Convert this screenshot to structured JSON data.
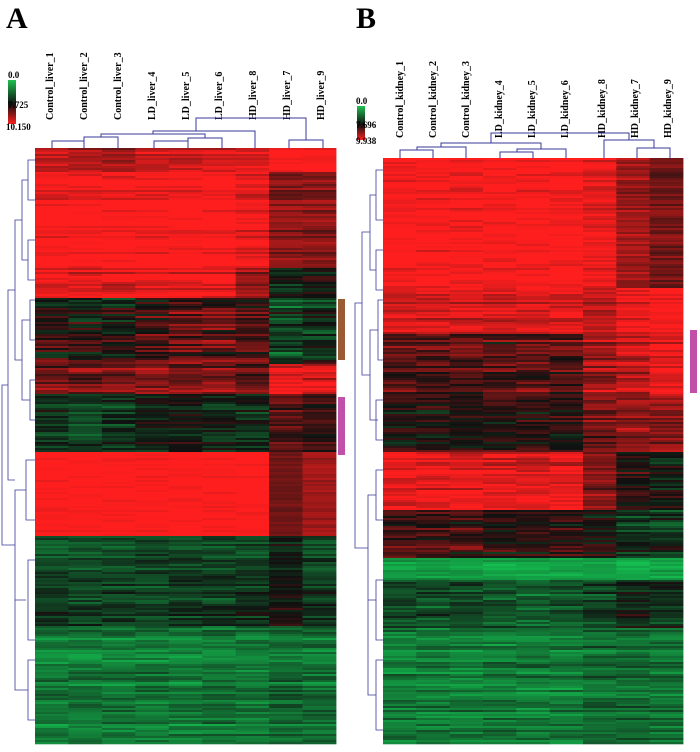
{
  "panels": [
    {
      "letter": "A",
      "legend": {
        "min": "0.0",
        "mid": "7.725",
        "max": "10.150"
      },
      "columns": [
        "Control_liver_1",
        "Control_liver_2",
        "Control_liver_3",
        "LD_liver_4",
        "LD_liver_5",
        "LD_liver_6",
        "HD_liver_8",
        "HD_liver_7",
        "HD_liver_9"
      ]
    },
    {
      "letter": "B",
      "legend": {
        "min": "0.0",
        "mid": "7.696",
        "max": "9.938"
      },
      "columns": [
        "Control_kidney_1",
        "Control_kidney_2",
        "Control_kidney_3",
        "LD_kidney_4",
        "LD_kidney_5",
        "LD_kidney_6",
        "HD_kidney_8",
        "HD_kidney_7",
        "HD_kidney_9"
      ]
    }
  ],
  "colors": {
    "high": "#ff2020",
    "mid": "#101010",
    "low": "#20b050",
    "dendrogram": "#3a3a9a",
    "marker_brown": "#9a5a34",
    "marker_magenta": "#c050a8"
  }
}
